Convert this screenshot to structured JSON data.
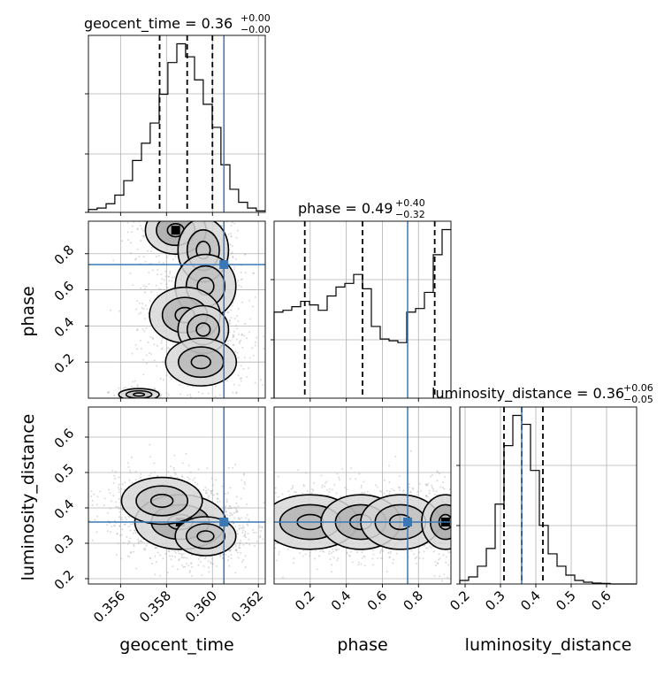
{
  "chart_data": {
    "type": "corner",
    "parameters": [
      "geocent_time",
      "phase",
      "luminosity_distance"
    ],
    "axis_labels": {
      "geocent_time": "geocent_time",
      "phase": "phase",
      "luminosity_distance": "luminosity_distance"
    },
    "ranges": {
      "geocent_time": [
        0.3546,
        0.3623
      ],
      "phase": [
        0.0,
        0.98
      ],
      "luminosity_distance": [
        0.185,
        0.685
      ]
    },
    "ticks": {
      "geocent_time": [
        0.356,
        0.358,
        0.36,
        0.362
      ],
      "phase": [
        0.2,
        0.4,
        0.6,
        0.8
      ],
      "luminosity_distance": [
        0.2,
        0.3,
        0.4,
        0.5,
        0.6
      ]
    },
    "tick_labels": {
      "geocent_time": [
        "0.356",
        "0.358",
        "0.360",
        "0.362"
      ],
      "phase": [
        "0.2",
        "0.4",
        "0.6",
        "0.8"
      ],
      "luminosity_distance": [
        "0.2",
        "0.3",
        "0.4",
        "0.5",
        "0.6"
      ]
    },
    "truths": {
      "geocent_time": 0.3605,
      "phase": 0.74,
      "luminosity_distance": 0.36
    },
    "titles": {
      "geocent_time": {
        "text": "geocent_time = 0.36",
        "plus": "+0.00",
        "minus": "−0.00"
      },
      "phase": {
        "text": "phase = 0.49",
        "plus": "+0.40",
        "minus": "−0.32"
      },
      "luminosity_distance": {
        "text": "luminosity_distance = 0.36",
        "plus": "+0.06",
        "minus": "−0.05"
      }
    },
    "quantiles": {
      "geocent_time": [
        0.3577,
        0.3589,
        0.36
      ],
      "phase": [
        0.17,
        0.49,
        0.89
      ],
      "luminosity_distance": [
        0.31,
        0.36,
        0.42
      ]
    },
    "histograms": {
      "geocent_time": {
        "edges": [
          0.3546,
          0.35498,
          0.35537,
          0.35575,
          0.35614,
          0.35652,
          0.35691,
          0.35729,
          0.35768,
          0.35806,
          0.35845,
          0.35883,
          0.35922,
          0.3596,
          0.35999,
          0.36037,
          0.36076,
          0.36114,
          0.36153,
          0.36191,
          0.3623
        ],
        "counts": [
          2,
          3,
          6,
          12,
          22,
          36,
          48,
          62,
          82,
          104,
          117,
          108,
          92,
          75,
          59,
          33,
          16,
          7,
          3,
          1
        ]
      },
      "phase": {
        "edges": [
          0.0,
          0.049,
          0.098,
          0.147,
          0.196,
          0.245,
          0.294,
          0.343,
          0.392,
          0.441,
          0.49,
          0.539,
          0.588,
          0.637,
          0.686,
          0.735,
          0.784,
          0.833,
          0.882,
          0.931,
          0.98
        ],
        "counts": [
          0.48,
          0.49,
          0.51,
          0.54,
          0.52,
          0.49,
          0.57,
          0.62,
          0.64,
          0.69,
          0.61,
          0.4,
          0.33,
          0.32,
          0.31,
          0.48,
          0.5,
          0.59,
          0.8,
          0.94
        ]
      },
      "luminosity_distance": {
        "edges": [
          0.185,
          0.21,
          0.235,
          0.26,
          0.285,
          0.31,
          0.335,
          0.36,
          0.385,
          0.41,
          0.435,
          0.46,
          0.485,
          0.51,
          0.535,
          0.56,
          0.585,
          0.61,
          0.635,
          0.66,
          0.685
        ],
        "counts": [
          2,
          4,
          10,
          20,
          45,
          78,
          95,
          90,
          64,
          33,
          17,
          10,
          5,
          2,
          1,
          0.5,
          0.3,
          0,
          0,
          0
        ]
      }
    },
    "density_blobs": {
      "phase_vs_geocent_time": [
        {
          "x": 0.3584,
          "y": 0.93,
          "sx": 0.0006,
          "sy": 0.06,
          "w": 1.0
        },
        {
          "x": 0.3596,
          "y": 0.82,
          "sx": 0.0005,
          "sy": 0.08,
          "w": 0.55
        },
        {
          "x": 0.3597,
          "y": 0.62,
          "sx": 0.0006,
          "sy": 0.08,
          "w": 0.5
        },
        {
          "x": 0.3588,
          "y": 0.46,
          "sx": 0.0007,
          "sy": 0.07,
          "w": 0.75
        },
        {
          "x": 0.3596,
          "y": 0.38,
          "sx": 0.0005,
          "sy": 0.06,
          "w": 0.5
        },
        {
          "x": 0.3595,
          "y": 0.2,
          "sx": 0.0007,
          "sy": 0.06,
          "w": 0.7
        },
        {
          "x": 0.3568,
          "y": 0.02,
          "sx": 0.0004,
          "sy": 0.015,
          "w": 0.45
        }
      ],
      "luminosity_distance_vs_geocent_time": [
        {
          "x": 0.3586,
          "y": 0.36,
          "sx": 0.0009,
          "sy": 0.035,
          "w": 1.0
        },
        {
          "x": 0.3578,
          "y": 0.42,
          "sx": 0.0008,
          "sy": 0.03,
          "w": 0.45
        },
        {
          "x": 0.3597,
          "y": 0.32,
          "sx": 0.0006,
          "sy": 0.025,
          "w": 0.5
        }
      ],
      "luminosity_distance_vs_phase": [
        {
          "x": 0.2,
          "y": 0.36,
          "sx": 0.12,
          "sy": 0.035,
          "w": 0.8
        },
        {
          "x": 0.48,
          "y": 0.36,
          "sx": 0.1,
          "sy": 0.035,
          "w": 0.85
        },
        {
          "x": 0.7,
          "y": 0.36,
          "sx": 0.1,
          "sy": 0.035,
          "w": 0.55
        },
        {
          "x": 0.95,
          "y": 0.36,
          "sx": 0.06,
          "sy": 0.035,
          "w": 1.0
        }
      ]
    },
    "colors": {
      "truth": "#3a78b5",
      "lines": "#000000",
      "grid": "#b0b0b0"
    },
    "grid": true
  }
}
